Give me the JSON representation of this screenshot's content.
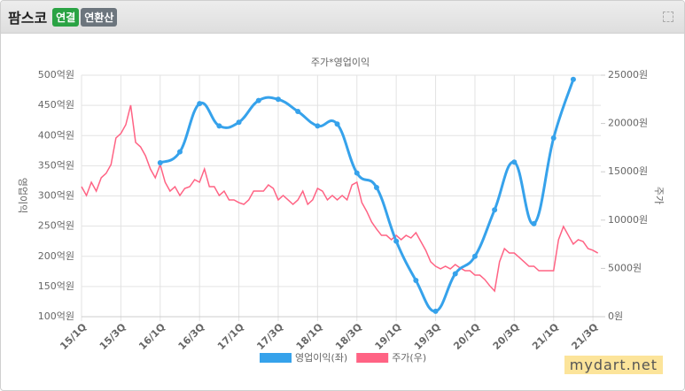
{
  "header": {
    "title": "팜스코",
    "badges": [
      "연결",
      "연환산"
    ]
  },
  "watermark": "mydart.net",
  "chart_data": {
    "type": "line",
    "title": "주가*영업이익",
    "ylabel": "영업이익",
    "y2label": "주가",
    "xlim": [
      0,
      26.4
    ],
    "xticks": [
      {
        "value": 0,
        "label": "15/1Q"
      },
      {
        "value": 2,
        "label": "15/3Q"
      },
      {
        "value": 4,
        "label": "16/1Q"
      },
      {
        "value": 6,
        "label": "16/3Q"
      },
      {
        "value": 8,
        "label": "17/1Q"
      },
      {
        "value": 10,
        "label": "17/3Q"
      },
      {
        "value": 12,
        "label": "18/1Q"
      },
      {
        "value": 14,
        "label": "18/3Q"
      },
      {
        "value": 16,
        "label": "19/1Q"
      },
      {
        "value": 18,
        "label": "19/3Q"
      },
      {
        "value": 20,
        "label": "20/1Q"
      },
      {
        "value": 22,
        "label": "20/3Q"
      },
      {
        "value": 24,
        "label": "21/1Q"
      },
      {
        "value": 26,
        "label": "21/3Q"
      }
    ],
    "ylim": [
      100,
      500
    ],
    "yticks": [
      {
        "value": 100,
        "label": "100억원"
      },
      {
        "value": 150,
        "label": "150억원"
      },
      {
        "value": 200,
        "label": "200억원"
      },
      {
        "value": 250,
        "label": "250억원"
      },
      {
        "value": 300,
        "label": "300억원"
      },
      {
        "value": 350,
        "label": "350억원"
      },
      {
        "value": 400,
        "label": "400억원"
      },
      {
        "value": 450,
        "label": "450억원"
      },
      {
        "value": 500,
        "label": "500억원"
      }
    ],
    "y2lim": [
      0,
      25000
    ],
    "y2ticks": [
      {
        "value": 0,
        "label": "0원"
      },
      {
        "value": 5000,
        "label": "5000원"
      },
      {
        "value": 10000,
        "label": "10000원"
      },
      {
        "value": 15000,
        "label": "15000원"
      },
      {
        "value": 20000,
        "label": "20000원"
      },
      {
        "value": 25000,
        "label": "25000원"
      }
    ],
    "grid": true,
    "series": [
      {
        "name": "영업이익(좌)",
        "color": "#36a2eb",
        "smooth": true,
        "markers": true,
        "x": [
          4,
          5,
          6,
          7,
          8,
          9,
          10,
          11,
          12,
          13,
          14,
          15,
          16,
          17,
          18,
          19,
          20,
          21,
          22,
          23,
          24,
          25
        ],
        "values": [
          355,
          373,
          453,
          416,
          422,
          458,
          460,
          440,
          416,
          419,
          338,
          314,
          225,
          160,
          109,
          171,
          200,
          277,
          356,
          254,
          396,
          493
        ]
      },
      {
        "name": "주가(우)",
        "color": "#ff6384",
        "axis": "y2",
        "smooth": false,
        "markers": false,
        "x": [
          0,
          0.25,
          0.5,
          0.75,
          1,
          1.25,
          1.5,
          1.75,
          2,
          2.25,
          2.5,
          2.75,
          3,
          3.25,
          3.5,
          3.75,
          4,
          4.25,
          4.5,
          4.75,
          5,
          5.25,
          5.5,
          5.75,
          6,
          6.25,
          6.5,
          6.75,
          7,
          7.25,
          7.5,
          7.75,
          8,
          8.25,
          8.5,
          8.75,
          9,
          9.25,
          9.5,
          9.75,
          10,
          10.25,
          10.5,
          10.75,
          11,
          11.25,
          11.5,
          11.75,
          12,
          12.25,
          12.5,
          12.75,
          13,
          13.25,
          13.5,
          13.75,
          14,
          14.25,
          14.5,
          14.75,
          15,
          15.25,
          15.5,
          15.75,
          16,
          16.25,
          16.5,
          16.75,
          17,
          17.25,
          17.5,
          17.75,
          18,
          18.25,
          18.5,
          18.75,
          19,
          19.25,
          19.5,
          19.75,
          20,
          20.25,
          20.5,
          20.75,
          21,
          21.25,
          21.5,
          21.75,
          22,
          22.25,
          22.5,
          22.75,
          23,
          23.25,
          23.5,
          23.75,
          24,
          24.25,
          24.5,
          24.75,
          25,
          25.25,
          25.5,
          25.75,
          26,
          26.25
        ],
        "values": [
          13460,
          12550,
          13920,
          13000,
          14380,
          14840,
          15750,
          18500,
          18960,
          19870,
          21890,
          18040,
          17580,
          16670,
          15290,
          14380,
          15750,
          13920,
          13000,
          13460,
          12550,
          13280,
          13460,
          14190,
          13920,
          15290,
          13460,
          13460,
          12550,
          13000,
          12090,
          12090,
          11810,
          11630,
          12090,
          13000,
          13000,
          13000,
          13640,
          13280,
          12090,
          12550,
          12090,
          11630,
          12090,
          13000,
          11630,
          12090,
          13280,
          13000,
          12090,
          12550,
          12090,
          12550,
          12090,
          13640,
          13920,
          11810,
          10900,
          9800,
          9070,
          8420,
          8420,
          7970,
          8420,
          7970,
          8420,
          8150,
          8700,
          7780,
          6870,
          5680,
          5220,
          4950,
          5220,
          4950,
          5400,
          5040,
          4760,
          4760,
          4300,
          4300,
          3850,
          3210,
          2660,
          5680,
          7050,
          6590,
          6590,
          6140,
          5680,
          5220,
          5220,
          4760,
          4760,
          4760,
          4760,
          7970,
          9340,
          8420,
          7510,
          7970,
          7780,
          7050,
          6870,
          6590
        ]
      }
    ]
  }
}
